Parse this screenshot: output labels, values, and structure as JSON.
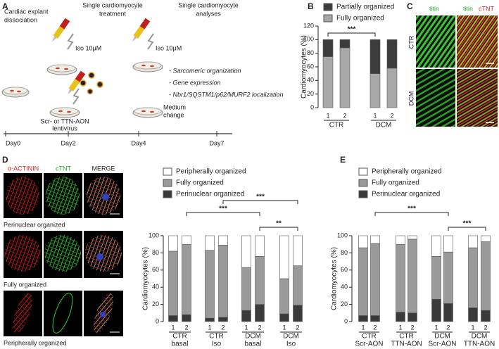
{
  "figure": {
    "A": {
      "letter": "A",
      "step1": [
        "Cardiac explant",
        "dissociation"
      ],
      "step2": [
        "Single cardiomyocyte",
        "treatment"
      ],
      "step3": [
        "Single cardiomyocyte",
        "analyses"
      ],
      "iso": "Iso 10μM",
      "virus": [
        "Scr- or TTN-AON",
        "lentivirus"
      ],
      "medium": [
        "Medium",
        "change"
      ],
      "analyses": [
        "- Sarcomeric organization",
        "- Gene expression",
        "- Nbr1/SQSTM1/p62/MURF2 localization"
      ],
      "days": [
        "Day0",
        "Day2",
        "Day4",
        "Day7"
      ]
    },
    "C": {
      "letter": "C",
      "col1": "titin",
      "col2": [
        "titin",
        "cTNT"
      ],
      "rows": [
        "CTR",
        "DCM"
      ]
    },
    "D": {
      "letter": "D",
      "stains": [
        "α-ACTININ",
        "cTNT",
        "MERGE"
      ],
      "rows": [
        "Perinuclear organized",
        "Fully organized",
        "Peripherally organized"
      ]
    },
    "E": {
      "letter": "E"
    }
  },
  "chart_data": [
    {
      "type": "stacked-bar",
      "panel_label": "B",
      "ylabel": "Cardiomyocytes (%)",
      "categories": [
        "1",
        "2",
        "1",
        "2"
      ],
      "groups": [
        [
          "CTR"
        ],
        [
          "DCM"
        ]
      ],
      "series": [
        {
          "name": "Fully organized",
          "color": "#a8a8a8",
          "values": [
            75,
            88,
            50,
            58
          ]
        },
        {
          "name": "Partially organized",
          "color": "#3c3c3c",
          "values": [
            25,
            12,
            50,
            42
          ]
        }
      ],
      "ylim": [
        0,
        120
      ],
      "yticks": [
        0,
        20,
        40,
        60,
        80,
        100,
        120
      ],
      "brackets": [
        {
          "label": "***",
          "from": 0,
          "to": 2
        }
      ]
    },
    {
      "type": "stacked-bar",
      "ylabel": "Cardiomyocytes (%)",
      "categories": [
        "1",
        "2",
        "1",
        "2",
        "1",
        "2",
        "1",
        "2"
      ],
      "groups": [
        [
          "CTR",
          "basal"
        ],
        [
          "CTR",
          "Iso"
        ],
        [
          "DCM",
          "basal"
        ],
        [
          "DCM",
          "Iso"
        ]
      ],
      "series": [
        {
          "name": "Perinuclear organized",
          "color": "#3a3a3a",
          "values": [
            7,
            8,
            4,
            5,
            13,
            20,
            9,
            19
          ]
        },
        {
          "name": "Fully organized",
          "color": "#9a9a9a",
          "values": [
            75,
            82,
            79,
            84,
            50,
            56,
            41,
            46
          ]
        },
        {
          "name": "Peripherally organized",
          "color": "#ffffff",
          "values": [
            18,
            10,
            17,
            11,
            37,
            24,
            50,
            35
          ]
        }
      ],
      "ylim": [
        0,
        100
      ],
      "yticks": [
        0,
        20,
        40,
        60,
        80,
        100
      ],
      "brackets": [
        {
          "label": "***",
          "from": 1,
          "to": 5
        },
        {
          "label": "***",
          "from": 3,
          "to": 7
        },
        {
          "label": "**",
          "from": 5,
          "to": 7
        }
      ]
    },
    {
      "type": "stacked-bar",
      "ylabel": "Cardiomyocytes (%)",
      "categories": [
        "1",
        "2",
        "1",
        "2",
        "1",
        "2",
        "1",
        "2"
      ],
      "groups": [
        [
          "CTR",
          "Scr-AON"
        ],
        [
          "CTR",
          "TTN-AON"
        ],
        [
          "DCM",
          "Scr-AON"
        ],
        [
          "DCM",
          "TTN-AON"
        ]
      ],
      "series": [
        {
          "name": "Perinuclear organized",
          "color": "#3a3a3a",
          "values": [
            7,
            7,
            11,
            10,
            26,
            21,
            16,
            13
          ]
        },
        {
          "name": "Fully organized",
          "color": "#9a9a9a",
          "values": [
            79,
            84,
            79,
            86,
            50,
            60,
            70,
            80
          ]
        },
        {
          "name": "Peripherally organized",
          "color": "#ffffff",
          "values": [
            14,
            9,
            10,
            4,
            24,
            19,
            14,
            7
          ]
        }
      ],
      "ylim": [
        0,
        100
      ],
      "yticks": [
        0,
        20,
        40,
        60,
        80,
        100
      ],
      "brackets": [
        {
          "label": "***",
          "from": 1,
          "to": 5
        },
        {
          "label": "***",
          "from": 5,
          "to": 7
        }
      ]
    }
  ]
}
